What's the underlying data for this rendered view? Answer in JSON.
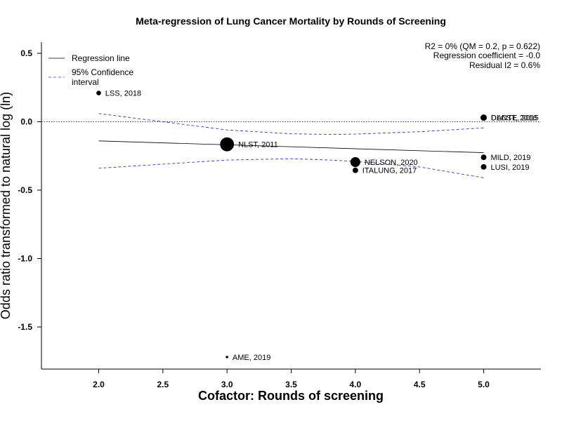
{
  "chart_data": {
    "type": "scatter",
    "title": "Meta-regression of  Lung Cancer Mortality by Rounds of Screening",
    "xlabel": "Cofactor:  Rounds of screening",
    "ylabel": "Odds ratio transformed to natural log (ln)",
    "xlim": [
      1.6,
      5.45
    ],
    "ylim": [
      -1.81,
      0.59
    ],
    "x_ticks": [
      2.0,
      2.5,
      3.0,
      3.5,
      4.0,
      4.5,
      5.0
    ],
    "x_tick_labels": [
      "2.0",
      "2.5",
      "3.0",
      "3.5",
      "4.0",
      "4.5",
      "5.0"
    ],
    "y_ticks": [
      0.5,
      0.0,
      -0.5,
      -1.0,
      -1.5
    ],
    "y_tick_labels": [
      "0.5",
      "0.0",
      "-0.5",
      "-1.0",
      "-1.5"
    ],
    "grid": false,
    "reference_line_y": 0.0,
    "legend": {
      "position": "top-left",
      "entries": [
        {
          "label": "Regression line",
          "style": "solid",
          "color": "#000000"
        },
        {
          "label": "95% Confidence interval",
          "style": "dashed",
          "color": "#3333cc"
        }
      ]
    },
    "stats": [
      "R2 = 0% (QM = 0.2, p = 0.622)",
      "Regression coefficient = -0.0",
      "Residual I2 = 0.6%"
    ],
    "regression_line": {
      "x": [
        2.0,
        5.0
      ],
      "y": [
        -0.14,
        -0.226
      ]
    },
    "ci_upper": {
      "x": [
        2.0,
        2.5,
        3.0,
        3.5,
        3.8,
        4.0,
        4.5,
        5.0
      ],
      "y": [
        0.06,
        0.0,
        -0.06,
        -0.088,
        -0.093,
        -0.09,
        -0.073,
        -0.045
      ]
    },
    "ci_lower": {
      "x": [
        2.0,
        2.5,
        3.0,
        3.5,
        3.8,
        4.0,
        4.5,
        5.0
      ],
      "y": [
        -0.34,
        -0.31,
        -0.28,
        -0.27,
        -0.28,
        -0.29,
        -0.33,
        -0.41
      ]
    },
    "points": [
      {
        "label": "LSS, 2018",
        "x": 2.0,
        "y": 0.21,
        "weight": 1.5
      },
      {
        "label": "NLST, 2011",
        "x": 3.0,
        "y": -0.165,
        "weight": 4.5
      },
      {
        "label": "NELSON, 2020",
        "x": 4.0,
        "y": -0.295,
        "weight": 3.2
      },
      {
        "label": "ITALUNG, 2017",
        "x": 4.0,
        "y": -0.355,
        "weight": 1.8
      },
      {
        "label": "DANTE, 2015",
        "x": 5.0,
        "y": 0.03,
        "weight": 2.0
      },
      {
        "label": "DLCST, 2016",
        "x": 5.0,
        "y": 0.03,
        "weight": 2.0
      },
      {
        "label": "MILD, 2019",
        "x": 5.0,
        "y": -0.26,
        "weight": 1.8
      },
      {
        "label": "LUSI, 2019",
        "x": 5.0,
        "y": -0.33,
        "weight": 1.8
      },
      {
        "label": "AME, 2019",
        "x": 3.0,
        "y": -1.72,
        "weight": 0.8
      }
    ]
  }
}
